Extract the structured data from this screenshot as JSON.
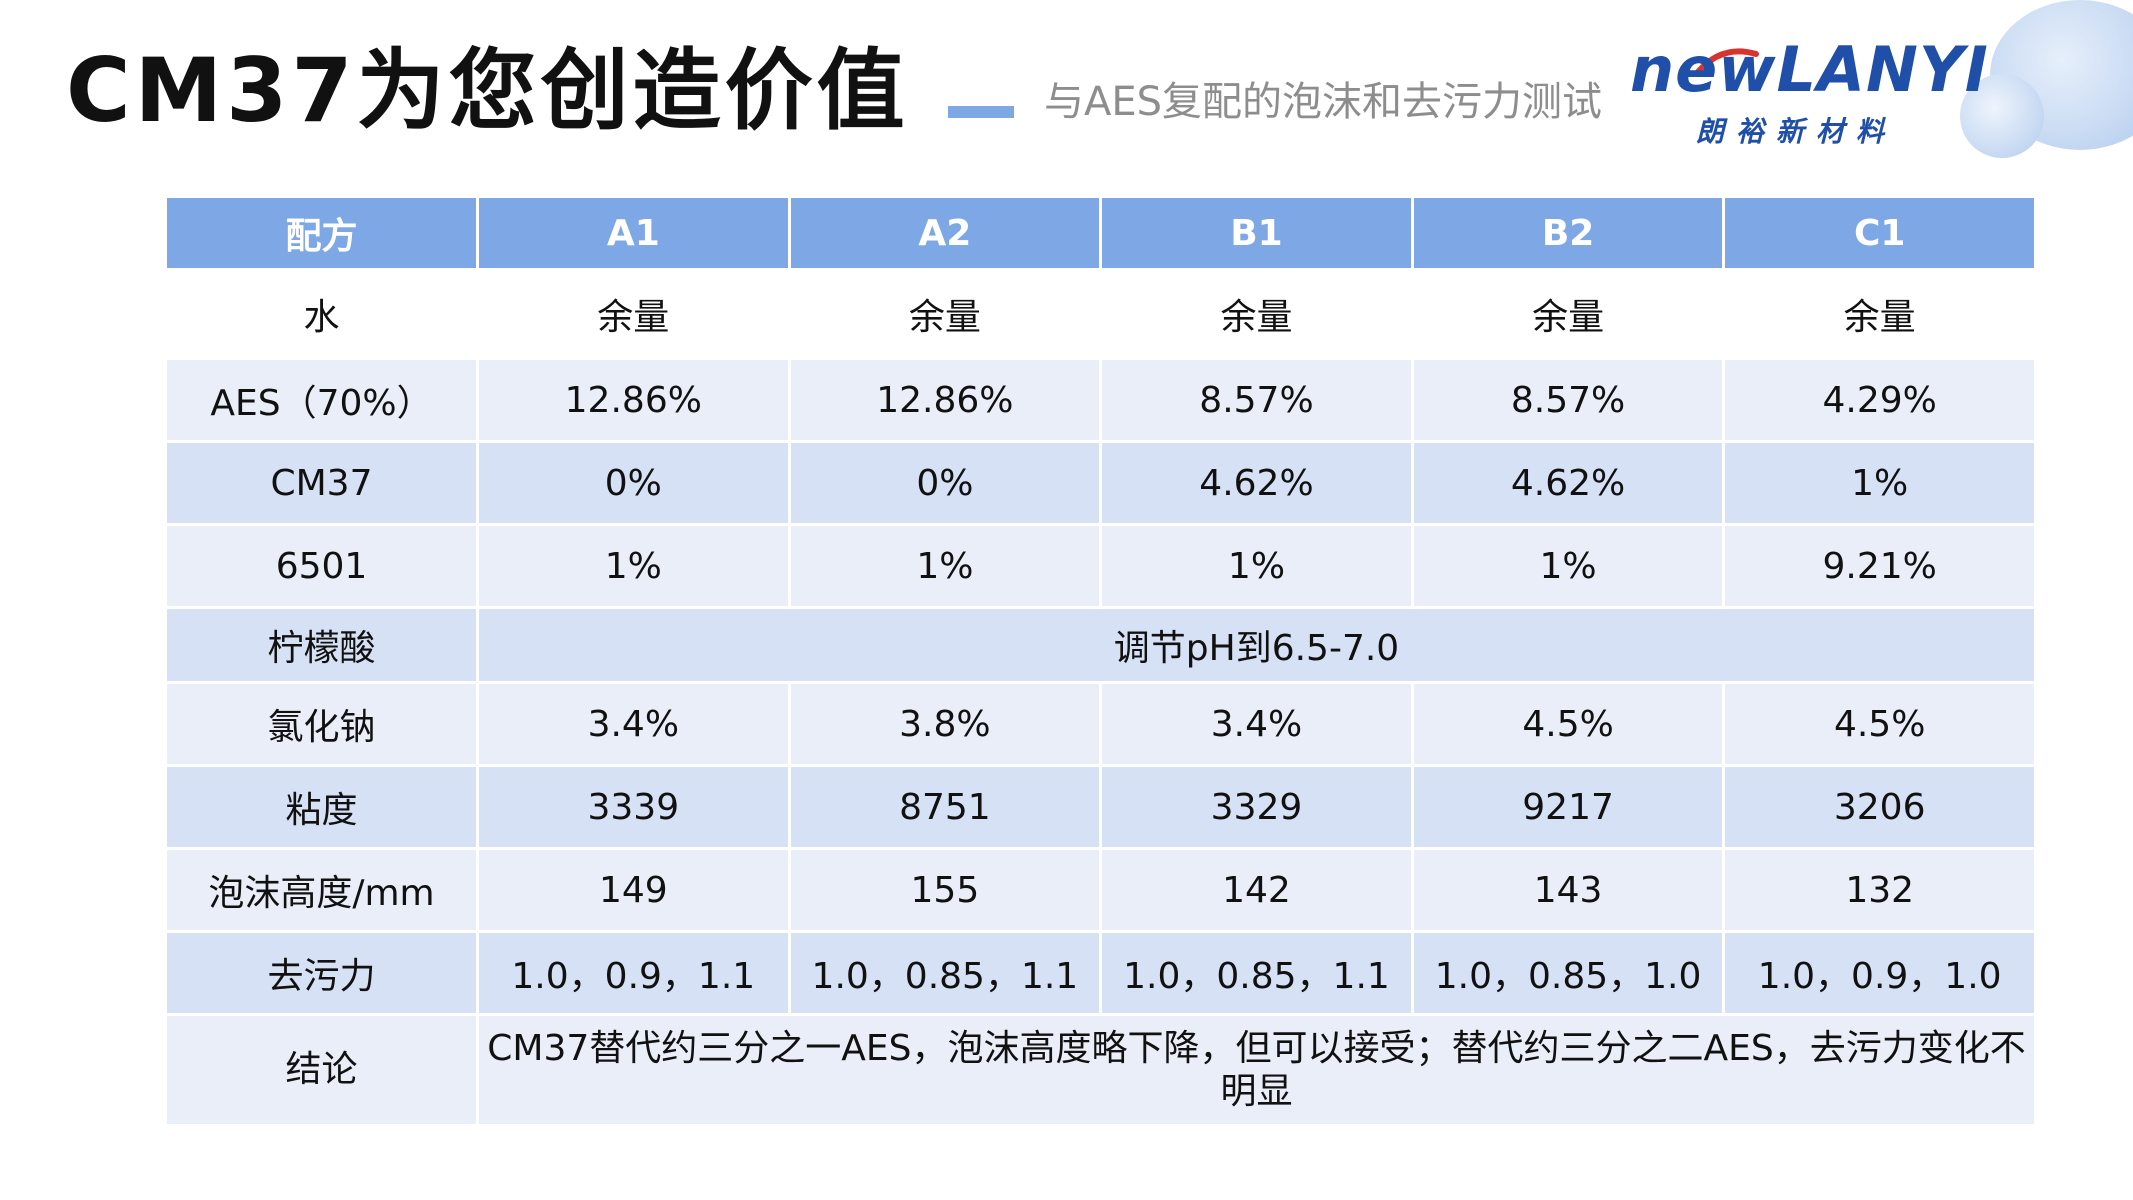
{
  "header": {
    "title": "CM37为您创造价值",
    "subtitle": "与AES复配的泡沫和去污力测试"
  },
  "logo": {
    "wordmark": "newLANYI",
    "tagline": "朗裕新材料"
  },
  "table": {
    "headers": [
      "配方",
      "A1",
      "A2",
      "B1",
      "B2",
      "C1"
    ],
    "rows": [
      {
        "label": "水",
        "values": [
          "余量",
          "余量",
          "余量",
          "余量",
          "余量"
        ]
      },
      {
        "label": "AES（70%）",
        "values": [
          "12.86%",
          "12.86%",
          "8.57%",
          "8.57%",
          "4.29%"
        ]
      },
      {
        "label": "CM37",
        "values": [
          "0%",
          "0%",
          "4.62%",
          "4.62%",
          "1%"
        ]
      },
      {
        "label": "6501",
        "values": [
          "1%",
          "1%",
          "1%",
          "1%",
          "9.21%"
        ]
      },
      {
        "label": "柠檬酸",
        "span_value": "调节pH到6.5-7.0"
      },
      {
        "label": "氯化钠",
        "values": [
          "3.4%",
          "3.8%",
          "3.4%",
          "4.5%",
          "4.5%"
        ]
      },
      {
        "label": "粘度",
        "values": [
          "3339",
          "8751",
          "3329",
          "9217",
          "3206"
        ]
      },
      {
        "label": "泡沫高度/mm",
        "values": [
          "149",
          "155",
          "142",
          "143",
          "132"
        ]
      },
      {
        "label": "去污力",
        "values": [
          "1.0，0.9，1.1",
          "1.0，0.85，1.1",
          "1.0，0.85，1.1",
          "1.0，0.85，1.0",
          "1.0，0.9，1.0"
        ]
      },
      {
        "label": "结论",
        "span_value": "CM37替代约三分之一AES，泡沫高度略下降，但可以接受；替代约三分之二AES，去污力变化不明显"
      }
    ]
  },
  "colors": {
    "header_bg": "#7ea7e6",
    "row_light": "#e9eef9",
    "row_mid": "#d6e1f5",
    "logo_blue": "#1f4fa8",
    "logo_red": "#d9342b"
  }
}
